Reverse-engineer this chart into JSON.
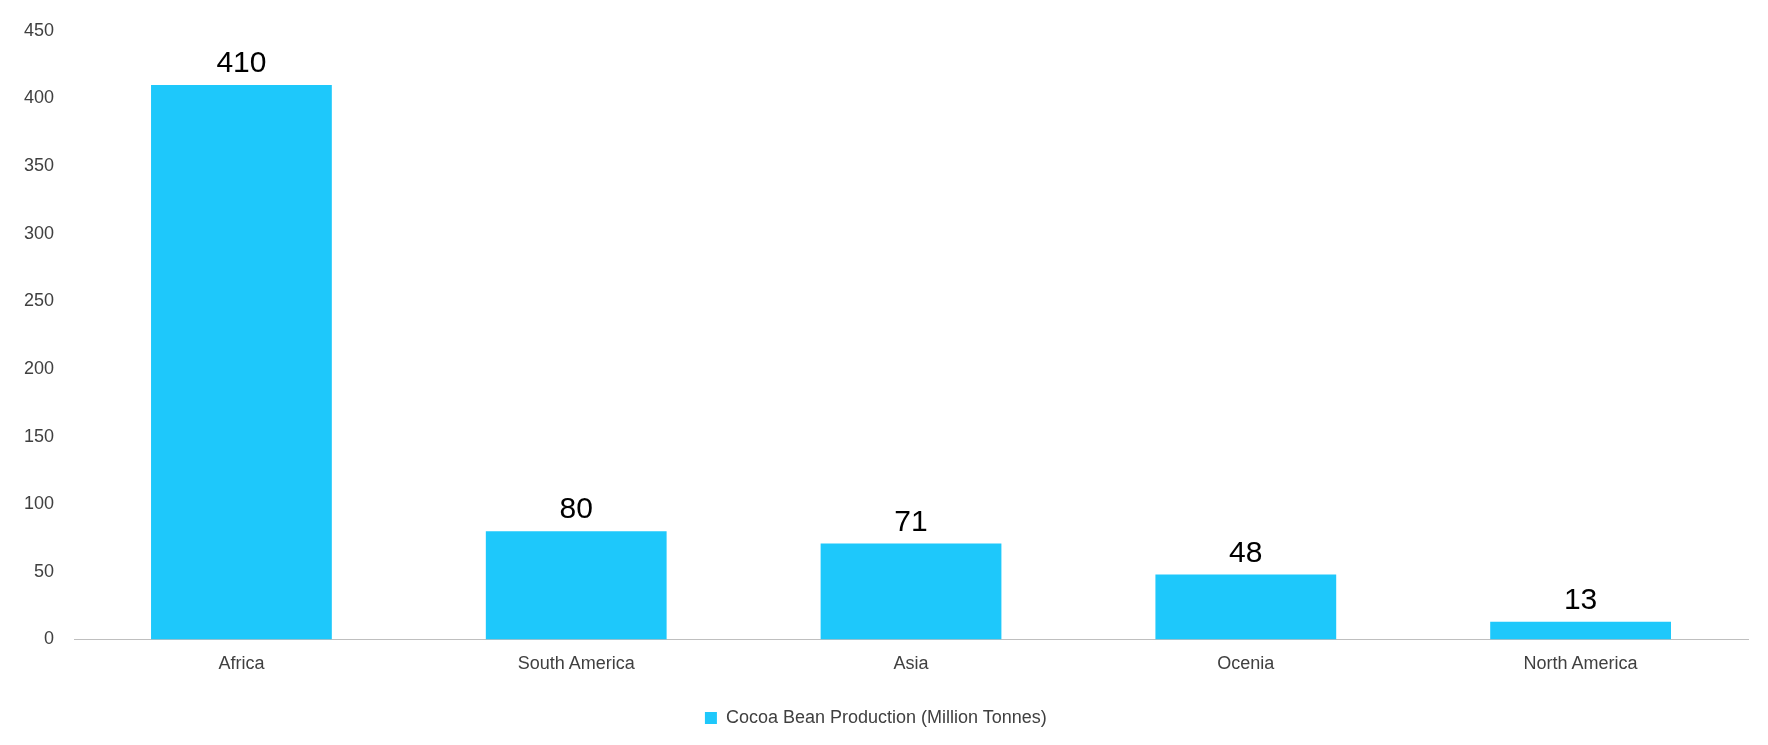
{
  "chart_data": {
    "type": "bar",
    "categories": [
      "Africa",
      "South America",
      "Asia",
      "Ocenia",
      "North America"
    ],
    "series": [
      {
        "name": "Cocoa Bean Production (Million Tonnes)",
        "color": "#1ec8fb",
        "values": [
          410,
          80,
          71,
          48,
          13
        ]
      }
    ],
    "ylim": [
      0,
      450
    ],
    "yticks": [
      0,
      50,
      100,
      150,
      200,
      250,
      300,
      350,
      400,
      450
    ],
    "grid": false,
    "legend": "bottom",
    "data_labels": true
  }
}
